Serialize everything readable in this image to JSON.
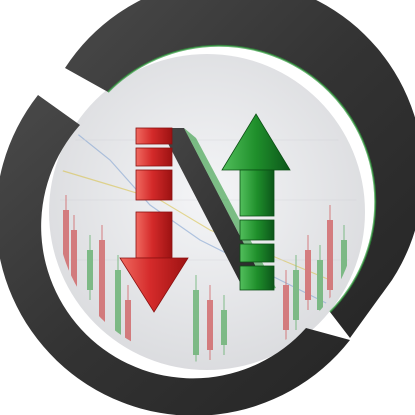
{
  "logo": {
    "colors": {
      "ring_dark": "#3a3a3a",
      "ring_highlight": "#5a5a5a",
      "background_light": "#e9eaec",
      "arrow_down": "#d42a2a",
      "arrow_down_light": "#ee5a52",
      "arrow_down_dark": "#a01515",
      "arrow_up": "#1f8f2b",
      "arrow_up_light": "#46b24f",
      "arrow_up_dark": "#0e5f18",
      "diagonal": "#3a3a3a",
      "candle_red": "#c8282a",
      "candle_green": "#2d9a3a",
      "trend_line_blue": "#7a9ed0",
      "trend_line_yellow": "#d8c040",
      "rim_green": "#2d9a3a"
    },
    "icons": {
      "down_arrow": "down-arrow-icon",
      "up_arrow": "up-arrow-icon",
      "ring": "circular-ring-shape",
      "background_chart": "candlestick-chart-icon"
    }
  }
}
